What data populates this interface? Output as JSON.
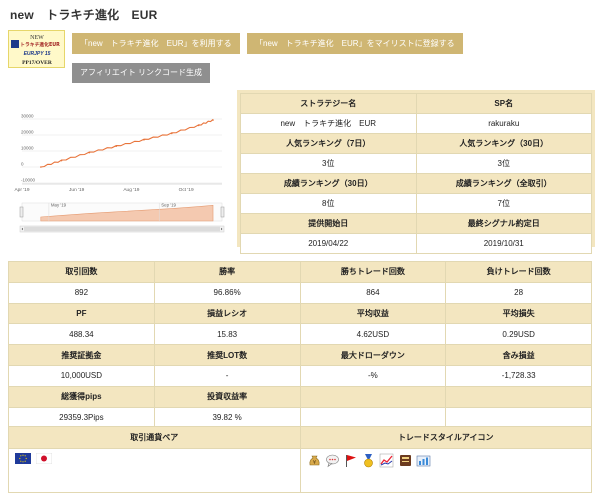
{
  "page": {
    "title": "new　トラキチ進化　EUR"
  },
  "logo": {
    "line1": "NEW",
    "line2": "トラキチ進化EUR",
    "line3": "EURJPY 15",
    "line4": "PP17/OVER"
  },
  "actions": {
    "use_label": "「new　トラキチ進化　EUR」を利用する",
    "mylist_label": "「new　トラキチ進化　EUR」をマイリストに登録する",
    "affiliate_label": "アフィリエイト リンクコード生成"
  },
  "chart_data": {
    "type": "line",
    "title": "",
    "xlabel": "",
    "ylabel": "",
    "x_ticks": [
      "Apr '19",
      "Jun '19",
      "Aug '19",
      "Oct '19"
    ],
    "navigator_ticks": [
      "May '19",
      "Sep '19"
    ],
    "y_ticks": [
      30000,
      20000,
      10000,
      0,
      -10000
    ],
    "ylim": [
      -10000,
      35000
    ],
    "grid": true,
    "series": [
      {
        "x": [
          "2019-04-22",
          "2019-05-15",
          "2019-06-15",
          "2019-07-15",
          "2019-08-15",
          "2019-09-15",
          "2019-10-15",
          "2019-10-31"
        ],
        "y": [
          0,
          4000,
          9000,
          13000,
          17000,
          21000,
          26000,
          29359
        ],
        "color": "#e8743b"
      }
    ],
    "navigator_color": "#f4c9b0"
  },
  "strategy": {
    "headers": {
      "strategy_name": "ストラテジー名",
      "sp_name": "SP名",
      "rank7": "人気ランキング（7日）",
      "rank30": "人気ランキング（30日）",
      "perf30": "成績ランキング（30日）",
      "perf_all": "成績ランキング（全取引）",
      "start": "提供開始日",
      "last_signal": "最終シグナル約定日"
    },
    "values": {
      "strategy_name": "new　トラキチ進化　EUR",
      "sp_name": "rakuraku",
      "rank7": "3位",
      "rank30": "3位",
      "perf30": "8位",
      "perf_all": "7位",
      "start": "2019/04/22",
      "last_signal": "2019/10/31"
    }
  },
  "stats": {
    "headers": {
      "trades": "取引回数",
      "winrate": "勝率",
      "wins": "勝ちトレード回数",
      "losses": "負けトレード回数",
      "pf": "PF",
      "ratio": "損益レシオ",
      "avg_gain": "平均収益",
      "avg_loss": "平均損失",
      "margin": "推奨証拠金",
      "lot": "推奨LOT数",
      "max_dd": "最大ドローダウン",
      "unrealized": "含み損益",
      "pips": "総獲得pips",
      "roi": "投資収益率"
    },
    "values": {
      "trades": "892",
      "winrate": "96.86%",
      "wins": "864",
      "losses": "28",
      "pf": "488.34",
      "ratio": "15.83",
      "avg_gain": "4.62USD",
      "avg_loss": "0.29USD",
      "margin": "10,000USD",
      "lot": "-",
      "max_dd": "-%",
      "unrealized": "-1,728.33",
      "pips": "29359.3Pips",
      "roi": "39.82 %"
    }
  },
  "bottom": {
    "pair_header": "取引通貨ペア",
    "style_header": "トレードスタイルアイコン",
    "pair_icons": [
      "eu-flag-icon",
      "japan-flag-icon"
    ],
    "style_icons": [
      "money-bag-icon",
      "speech-bubble-icon",
      "red-flag-icon",
      "medal-icon",
      "trend-chart-icon",
      "book-icon",
      "briefcase-chart-icon"
    ]
  }
}
